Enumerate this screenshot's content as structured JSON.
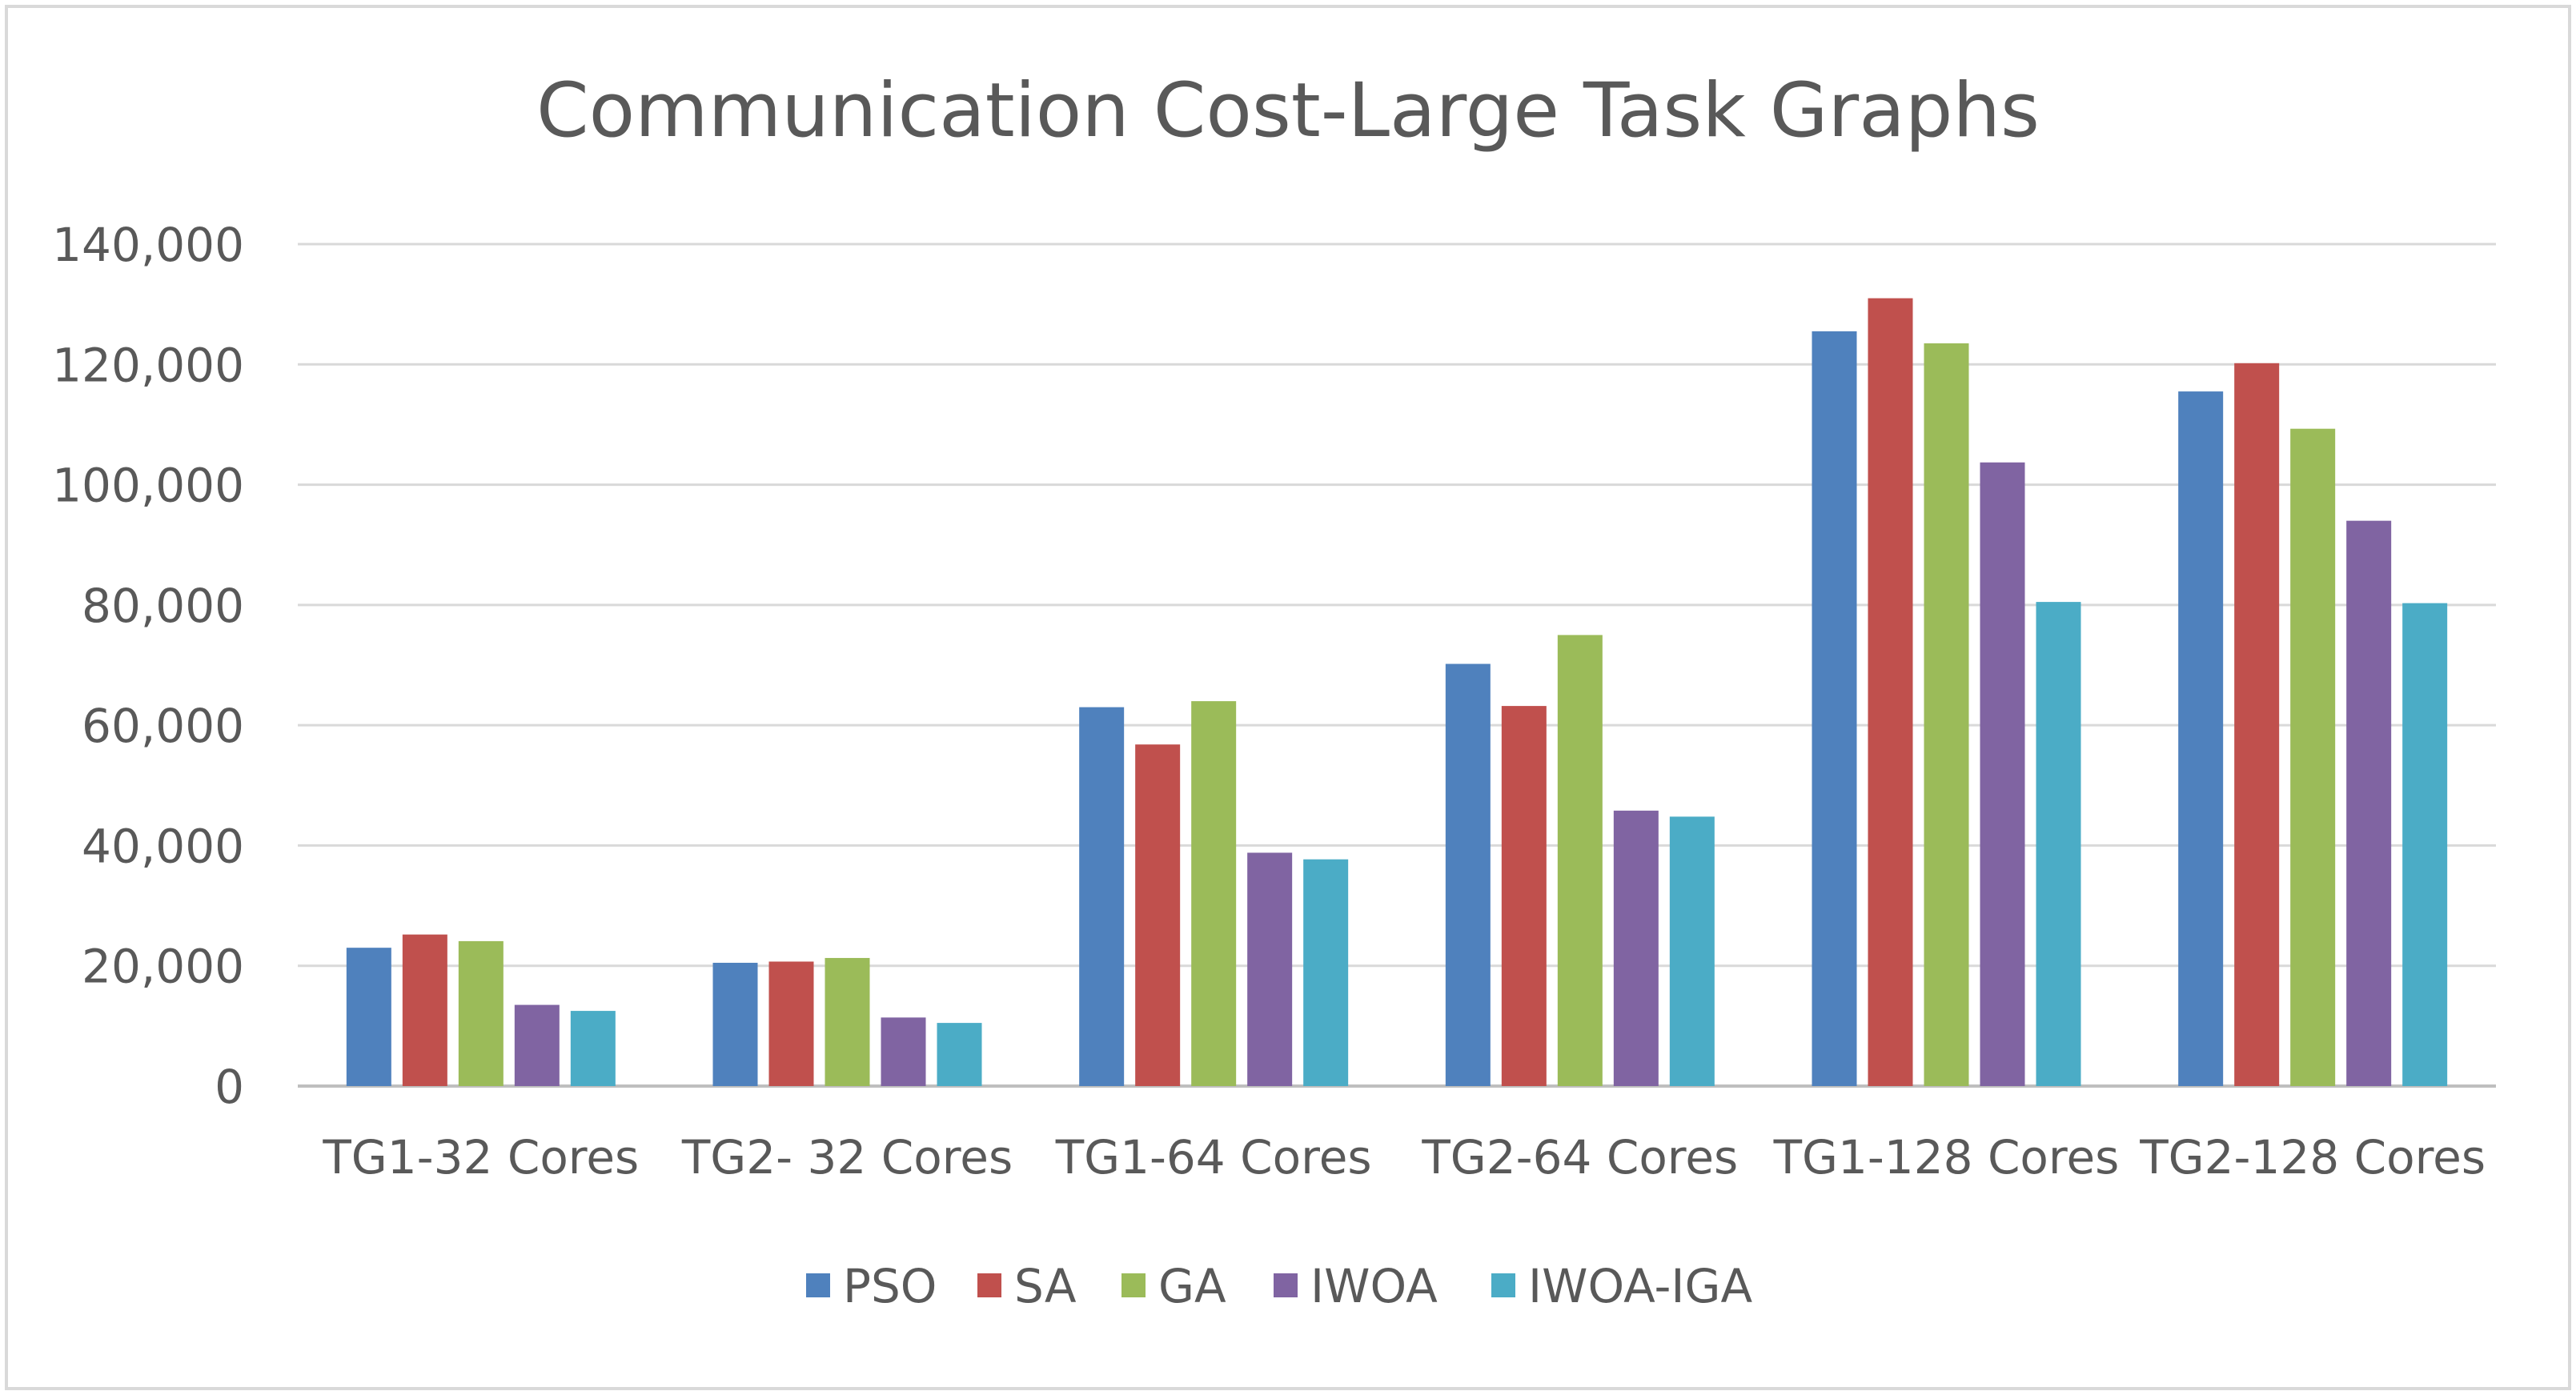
{
  "chart_data": {
    "type": "bar",
    "title": "Communication Cost-Large Task Graphs",
    "xlabel": "",
    "ylabel": "",
    "ylim": [
      0,
      140000
    ],
    "yticks": [
      "0",
      "20,000",
      "40,000",
      "60,000",
      "80,000",
      "100,000",
      "120,000",
      "140,000"
    ],
    "grid": true,
    "legend_position": "bottom",
    "categories": [
      "TG1-32 Cores",
      "TG2- 32 Cores",
      "TG1-64 Cores",
      "TG2-64 Cores",
      "TG1-128 Cores",
      "TG2-128 Cores"
    ],
    "series": [
      {
        "name": "PSO",
        "color": "#4F81BD",
        "values": [
          23000,
          20500,
          63000,
          70200,
          125500,
          115500
        ]
      },
      {
        "name": "SA",
        "color": "#C0504D",
        "values": [
          25200,
          20700,
          56800,
          63200,
          131000,
          120200
        ]
      },
      {
        "name": "GA",
        "color": "#9BBB59",
        "values": [
          24100,
          21300,
          64000,
          75000,
          123500,
          109300
        ]
      },
      {
        "name": "IWOA",
        "color": "#8064A2",
        "values": [
          13500,
          11400,
          38800,
          45800,
          103700,
          94000
        ]
      },
      {
        "name": "IWOA-IGA",
        "color": "#4BACC6",
        "values": [
          12500,
          10500,
          37700,
          44800,
          80500,
          80300
        ]
      }
    ]
  }
}
